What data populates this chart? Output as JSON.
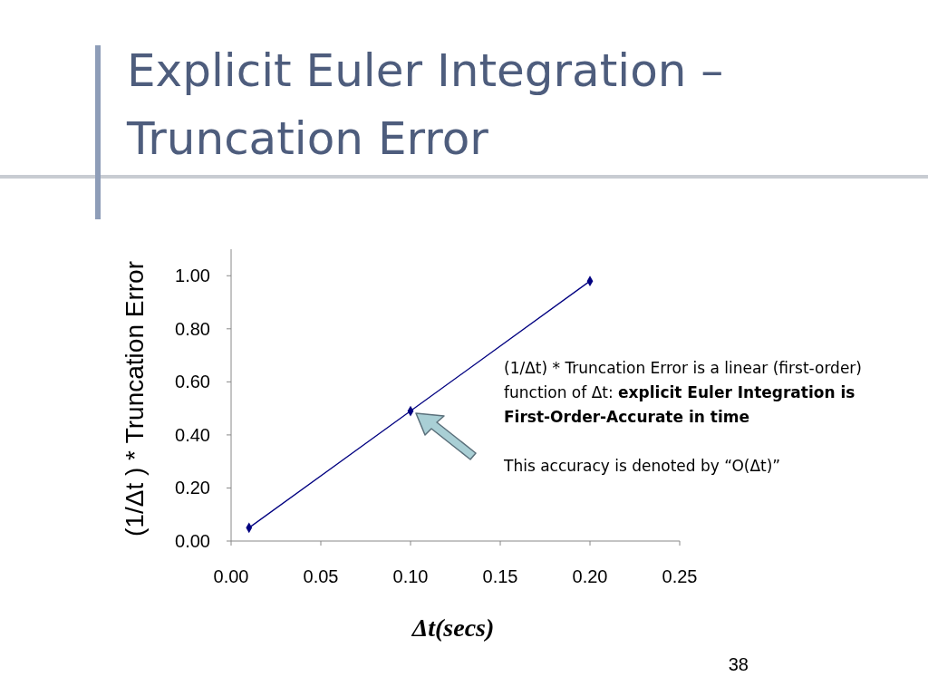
{
  "chart_data": {
    "type": "line",
    "title": "Explicit Euler Integration – Truncation Error",
    "xlabel": "Δt(secs)",
    "ylabel": "(1/Δt ) * Truncation Error",
    "x": [
      0.01,
      0.1,
      0.2
    ],
    "series": [
      {
        "color": "#000080",
        "values": [
          0.05,
          0.49,
          0.98
        ]
      }
    ],
    "marker": "diamond",
    "grid": false,
    "xlim": [
      0,
      0.25
    ],
    "xticks": [
      {
        "value": 0,
        "label": "0.00"
      },
      {
        "value": 0.05,
        "label": "0.05"
      },
      {
        "value": 0.1,
        "label": "0.10"
      },
      {
        "value": 0.15,
        "label": "0.15"
      },
      {
        "value": 0.2,
        "label": "0.20"
      },
      {
        "value": 0.25,
        "label": "0.25"
      }
    ],
    "ylim": [
      0,
      1.1
    ],
    "yticks": [
      {
        "value": 0,
        "label": "0.00"
      },
      {
        "value": 0.2,
        "label": "0.20"
      },
      {
        "value": 0.4,
        "label": "0.40"
      },
      {
        "value": 0.6,
        "label": "0.60"
      },
      {
        "value": 0.8,
        "label": "0.80"
      },
      {
        "value": 1,
        "label": "1.00"
      }
    ],
    "annotations": [
      "(1/Δt) * Truncation Error is a linear (first-order) function of Δt:",
      "explicit Euler Integration is First-Order-Accurate in time",
      "This accuracy is denoted by “O(Δt)”",
      "38"
    ]
  }
}
